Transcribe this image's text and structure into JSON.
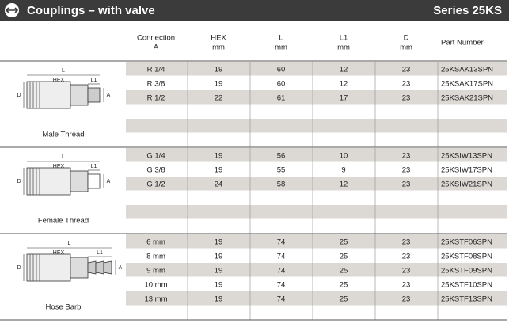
{
  "header": {
    "title": "Couplings – with valve",
    "series": "Series 25KS"
  },
  "table": {
    "columns": [
      [
        "Connection",
        "A"
      ],
      [
        "HEX",
        "mm"
      ],
      [
        "L",
        "mm"
      ],
      [
        "L1",
        "mm"
      ],
      [
        "D",
        "mm"
      ],
      [
        "Part Number"
      ]
    ],
    "dimension_labels": [
      "L",
      "HEX",
      "L1",
      "D",
      "A"
    ],
    "sections": [
      {
        "label": "Male Thread",
        "rows": [
          [
            "R 1/4",
            19,
            60,
            12,
            23,
            "25KSAK13SPN"
          ],
          [
            "R 3/8",
            19,
            60,
            12,
            23,
            "25KSAK17SPN"
          ],
          [
            "R 1/2",
            22,
            61,
            17,
            23,
            "25KSAK21SPN"
          ]
        ]
      },
      {
        "label": "Female Thread",
        "rows": [
          [
            "G 1/4",
            19,
            56,
            10,
            23,
            "25KSIW13SPN"
          ],
          [
            "G 3/8",
            19,
            55,
            9,
            23,
            "25KSIW17SPN"
          ],
          [
            "G 1/2",
            24,
            58,
            12,
            23,
            "25KSIW21SPN"
          ]
        ]
      },
      {
        "label": "Hose Barb",
        "rows": [
          [
            "6 mm",
            19,
            74,
            25,
            23,
            "25KSTF06SPN"
          ],
          [
            "8 mm",
            19,
            74,
            25,
            23,
            "25KSTF08SPN"
          ],
          [
            "9 mm",
            19,
            74,
            25,
            23,
            "25KSTF09SPN"
          ],
          [
            "10 mm",
            19,
            74,
            25,
            23,
            "25KSTF10SPN"
          ],
          [
            "13 mm",
            19,
            74,
            25,
            23,
            "25KSTF13SPN"
          ]
        ]
      }
    ]
  }
}
